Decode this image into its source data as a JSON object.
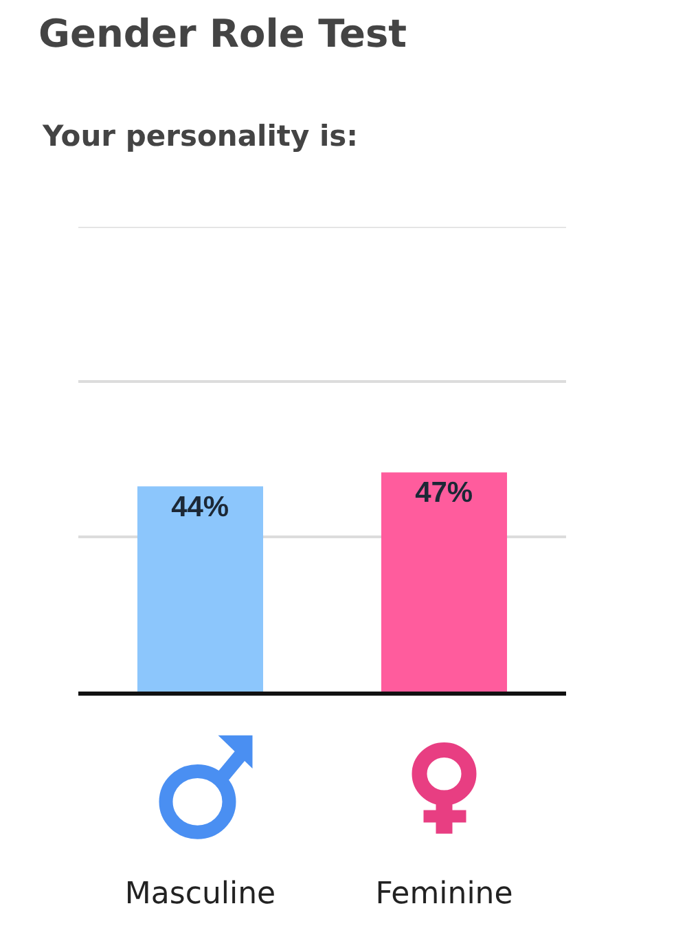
{
  "chart_data": {
    "type": "bar",
    "title": "Gender Role Test",
    "subtitle": "Your personality is:",
    "categories": [
      "Masculine",
      "Feminine"
    ],
    "values": [
      44,
      47
    ],
    "colors": [
      "#8cc6fc",
      "#ff5c9d"
    ],
    "value_labels": [
      "44%",
      "47%"
    ],
    "ylim": [
      0,
      100
    ],
    "yticks": [
      {
        "value": 33.33,
        "label": null
      },
      {
        "value": 66.67,
        "label": null
      },
      {
        "value": 100,
        "label": null
      }
    ],
    "grid": "y",
    "tick_labels": "x"
  }
}
